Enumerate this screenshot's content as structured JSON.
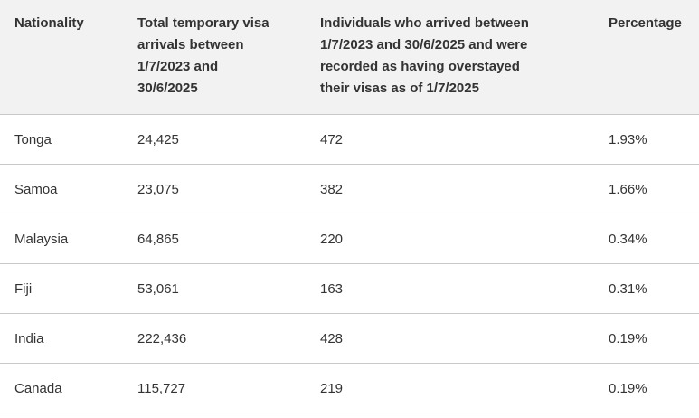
{
  "table": {
    "header": [
      "Nationality",
      "Total temporary visa arrivals between 1/7/2023 and 30/6/2025",
      "Individuals who arrived between 1/7/2023 and 30/6/2025 and were recorded as having overstayed their visas as of 1/7/2025",
      "Percentage"
    ],
    "rows": [
      [
        "Tonga",
        "24,425",
        "472",
        "1.93%"
      ],
      [
        "Samoa",
        "23,075",
        "382",
        "1.66%"
      ],
      [
        "Malaysia",
        "64,865",
        "220",
        "0.34%"
      ],
      [
        "Fiji",
        "53,061",
        "163",
        "0.31%"
      ],
      [
        "India",
        "222,436",
        "428",
        "0.19%"
      ],
      [
        "Canada",
        "115,727",
        "219",
        "0.19%"
      ]
    ]
  }
}
